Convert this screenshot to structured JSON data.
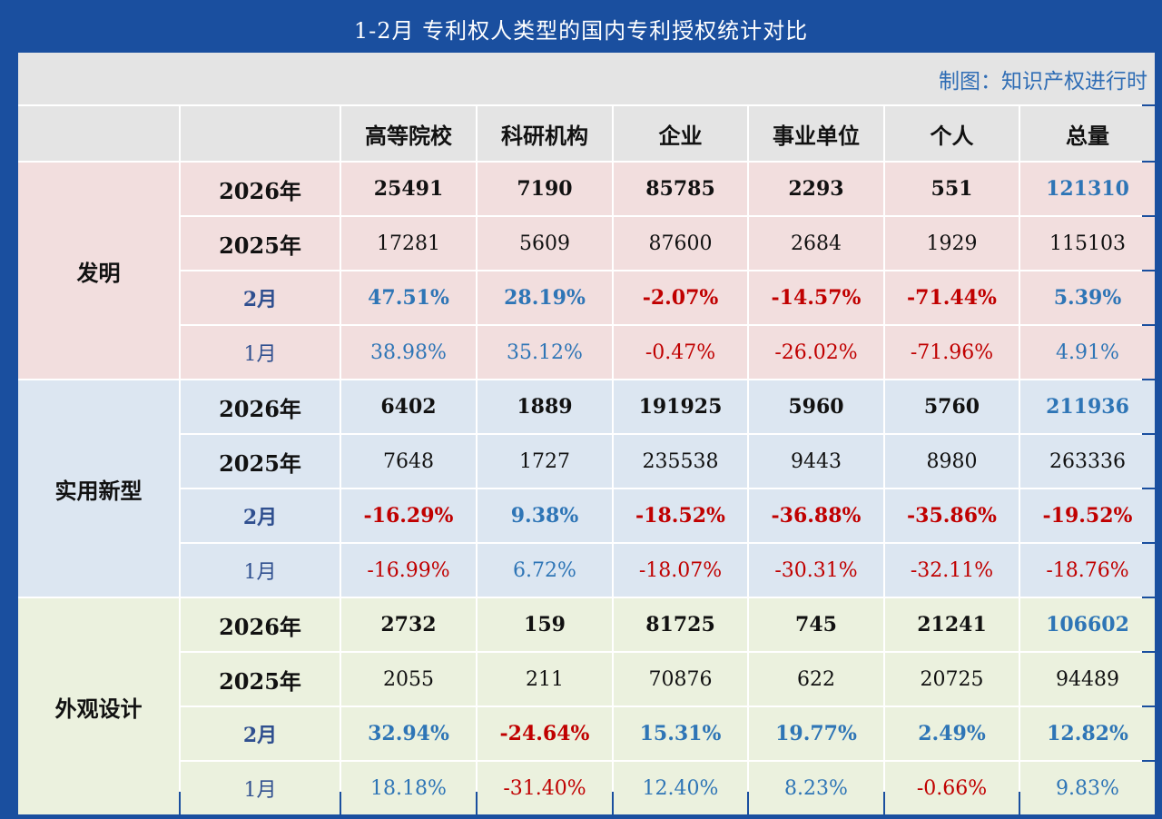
{
  "title": "1-2月 专利权人类型的国内专利授权统计对比",
  "credit": "制图：知识产权进行时",
  "headers": [
    "高等院校",
    "科研机构",
    "企业",
    "事业单位",
    "个人",
    "总量"
  ],
  "groups": [
    {
      "name": "发明",
      "rows": [
        {
          "label": "2026年",
          "values": [
            "25491",
            "7190",
            "85785",
            "2293",
            "551",
            "121310"
          ]
        },
        {
          "label": "2025年",
          "values": [
            "17281",
            "5609",
            "87600",
            "2684",
            "1929",
            "115103"
          ]
        },
        {
          "label": "2月",
          "values": [
            "47.51%",
            "28.19%",
            "-2.07%",
            "-14.57%",
            "-71.44%",
            "5.39%"
          ]
        },
        {
          "label": "1月",
          "values": [
            "38.98%",
            "35.12%",
            "-0.47%",
            "-26.02%",
            "-71.96%",
            "4.91%"
          ]
        }
      ]
    },
    {
      "name": "实用新型",
      "rows": [
        {
          "label": "2026年",
          "values": [
            "6402",
            "1889",
            "191925",
            "5960",
            "5760",
            "211936"
          ]
        },
        {
          "label": "2025年",
          "values": [
            "7648",
            "1727",
            "235538",
            "9443",
            "8980",
            "263336"
          ]
        },
        {
          "label": "2月",
          "values": [
            "-16.29%",
            "9.38%",
            "-18.52%",
            "-36.88%",
            "-35.86%",
            "-19.52%"
          ]
        },
        {
          "label": "1月",
          "values": [
            "-16.99%",
            "6.72%",
            "-18.07%",
            "-30.31%",
            "-32.11%",
            "-18.76%"
          ]
        }
      ]
    },
    {
      "name": "外观设计",
      "rows": [
        {
          "label": "2026年",
          "values": [
            "2732",
            "159",
            "81725",
            "745",
            "21241",
            "106602"
          ]
        },
        {
          "label": "2025年",
          "values": [
            "2055",
            "211",
            "70876",
            "622",
            "20725",
            "94489"
          ]
        },
        {
          "label": "2月",
          "values": [
            "32.94%",
            "-24.64%",
            "15.31%",
            "19.77%",
            "2.49%",
            "12.82%"
          ]
        },
        {
          "label": "1月",
          "values": [
            "18.18%",
            "-31.40%",
            "12.40%",
            "8.23%",
            "-0.66%",
            "9.83%"
          ]
        }
      ]
    }
  ],
  "chart_data": {
    "type": "table",
    "title": "1-2月 专利权人类型的国内专利授权统计对比",
    "columns": [
      "高等院校",
      "科研机构",
      "企业",
      "事业单位",
      "个人",
      "总量"
    ],
    "row_groups": [
      "发明",
      "实用新型",
      "外观设计"
    ],
    "row_labels": [
      "2026年",
      "2025年",
      "2月",
      "1月"
    ]
  }
}
